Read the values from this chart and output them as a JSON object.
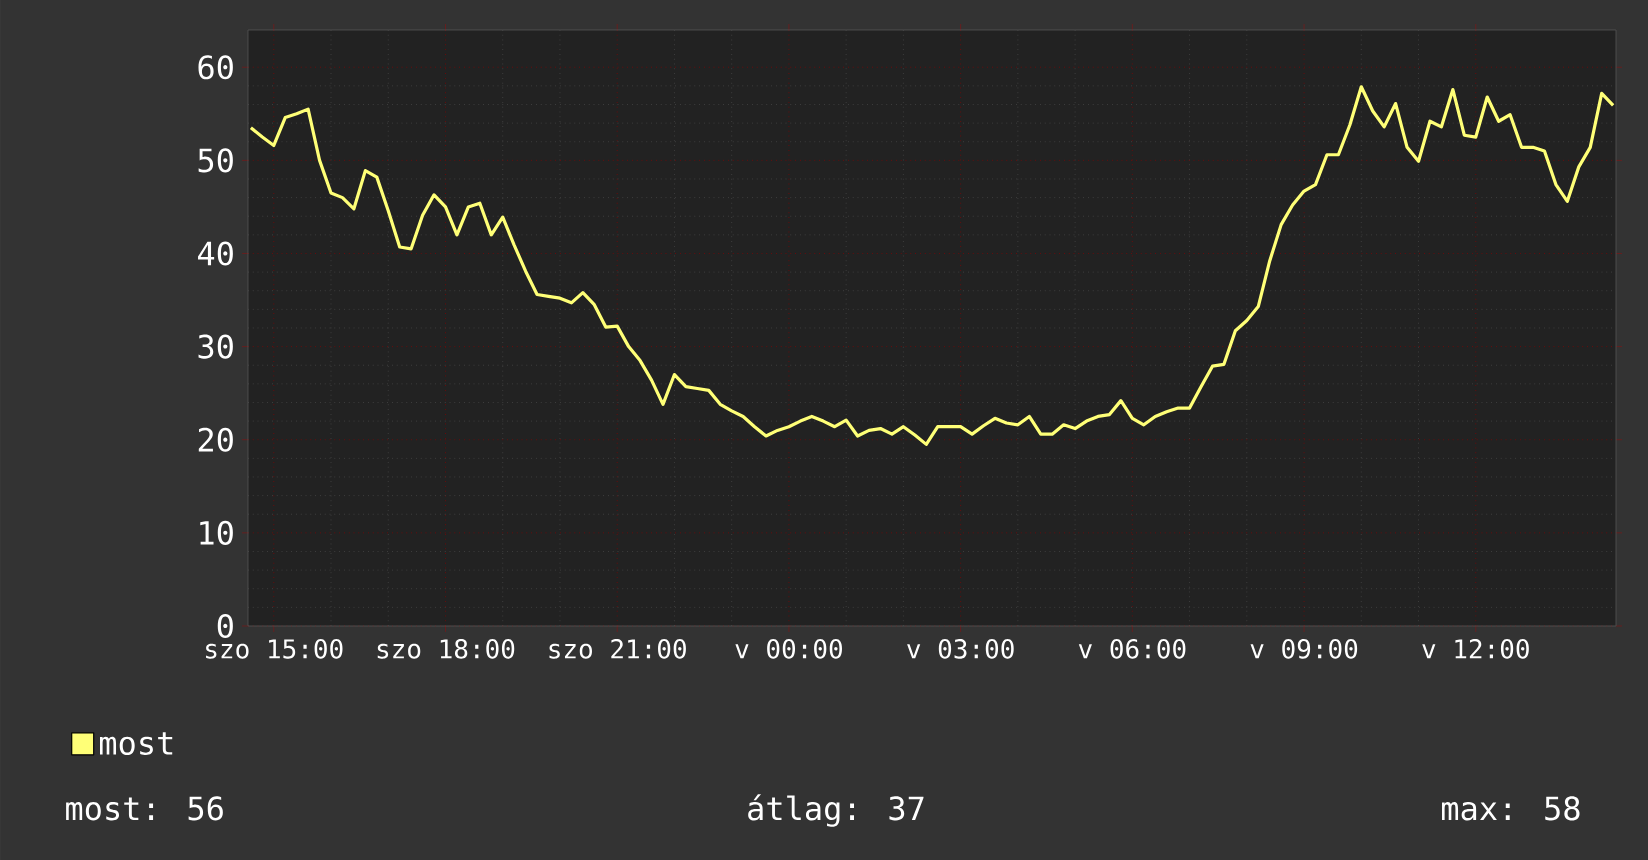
{
  "chart_data": {
    "type": "line",
    "categories": [
      null,
      null,
      "szo 15:00",
      null,
      null,
      null,
      null,
      null,
      null,
      null,
      null,
      null,
      null,
      null,
      null,
      null,
      null,
      "szo 18:00",
      null,
      null,
      null,
      null,
      null,
      null,
      null,
      null,
      null,
      null,
      null,
      null,
      null,
      null,
      "szo 21:00",
      null,
      null,
      null,
      null,
      null,
      null,
      null,
      null,
      null,
      null,
      null,
      null,
      null,
      null,
      "v 00:00",
      null,
      null,
      null,
      null,
      null,
      null,
      null,
      null,
      null,
      null,
      null,
      null,
      null,
      null,
      "v 03:00",
      null,
      null,
      null,
      null,
      null,
      null,
      null,
      null,
      null,
      null,
      null,
      null,
      null,
      null,
      "v 06:00",
      null,
      null,
      null,
      null,
      null,
      null,
      null,
      null,
      null,
      null,
      null,
      null,
      null,
      null,
      "v 09:00",
      null,
      null,
      null,
      null,
      null,
      null,
      null,
      null,
      null,
      null,
      null,
      null,
      null,
      null,
      "v 12:00",
      null,
      null,
      null,
      null,
      null,
      null,
      null,
      null,
      null,
      null,
      null,
      null
    ],
    "series": [
      {
        "name": "most",
        "color": "#ffff77",
        "values": [
          53.5,
          52.5,
          51.6,
          54.6,
          55.0,
          55.5,
          50,
          46.5,
          46,
          44.8,
          48.9,
          48.2,
          44.6,
          40.7,
          40.5,
          44.1,
          46.3,
          45,
          42,
          45,
          45.4,
          42,
          43.9,
          40.9,
          38.1,
          35.6,
          35.4,
          35.2,
          34.7,
          35.8,
          34.5,
          32.1,
          32.2,
          30,
          28.5,
          26.4,
          23.8,
          27,
          25.7,
          25.5,
          25.3,
          23.8,
          23.1,
          22.5,
          21.4,
          20.4,
          21,
          21.4,
          22,
          22.5,
          22,
          21.4,
          22.1,
          20.4,
          21,
          21.2,
          20.6,
          21.4,
          20.5,
          19.5,
          21.4,
          21.4,
          21.4,
          20.6,
          21.5,
          22.3,
          21.8,
          21.6,
          22.5,
          20.6,
          20.6,
          21.6,
          21.2,
          22,
          22.5,
          22.7,
          24.2,
          22.3,
          21.6,
          22.5,
          23,
          23.4,
          23.4,
          25.7,
          27.9,
          28.1,
          31.7,
          32.8,
          34.3,
          39.2,
          43.1,
          45.2,
          46.7,
          47.4,
          50.6,
          50.6,
          53.8,
          57.9,
          55.3,
          53.6,
          56.1,
          51.4,
          49.9,
          54.2,
          53.6,
          57.6,
          52.7,
          52.5,
          56.8,
          54.2,
          54.9,
          51.4,
          51.4,
          51,
          47.4,
          45.6,
          49.3,
          51.4,
          57.2,
          55.9
        ]
      }
    ],
    "ylim": [
      0,
      64
    ],
    "yticks": [
      0,
      10,
      20,
      30,
      40,
      50,
      60
    ],
    "grid": true,
    "legend": "bottom",
    "annotations": [
      "most: 56",
      "átlag: 37",
      "max: 58"
    ]
  }
}
